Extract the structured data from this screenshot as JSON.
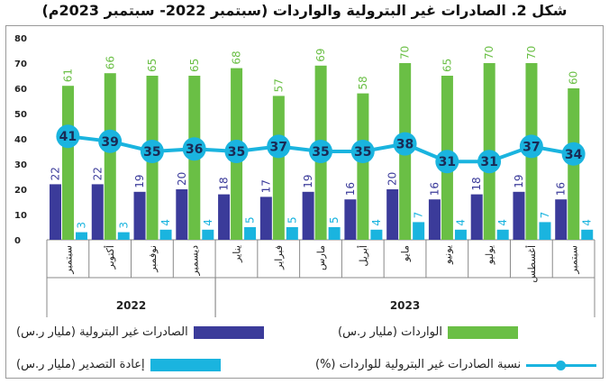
{
  "chart_data": {
    "title": "شكل 2. الصادرات غير البترولية والواردات (سبتمبر 2022- سبتمبر 2023م)",
    "type": "bar",
    "categories": [
      "سبتمبر",
      "أكتوبر",
      "نوفمبر",
      "ديسمبر",
      "يناير",
      "فبراير",
      "مارس",
      "أبريل",
      "مايو",
      "يونيو",
      "يوليو",
      "أغسطس",
      "سبتمبر"
    ],
    "year_groups": [
      {
        "label": "2022",
        "count": 4
      },
      {
        "label": "2023",
        "count": 9
      }
    ],
    "ylim": [
      0,
      80
    ],
    "yticks": [
      0,
      10,
      20,
      30,
      40,
      50,
      60,
      70,
      80
    ],
    "grid": false,
    "series": [
      {
        "name": "الصادرات غير البترولية (مليار ر.س)",
        "type": "bar",
        "color": "#3b3b9a",
        "values": [
          22,
          22,
          19,
          20,
          18,
          17,
          19,
          16,
          20,
          16,
          18,
          19,
          16
        ]
      },
      {
        "name": "الواردات (مليار ر.س)",
        "type": "bar",
        "color": "#6abf45",
        "values": [
          61,
          66,
          65,
          65,
          68,
          57,
          69,
          58,
          70,
          65,
          70,
          70,
          60
        ]
      },
      {
        "name": "إعادة التصدير (مليار ر.س)",
        "type": "bar",
        "color": "#1ab4df",
        "values": [
          3,
          3,
          4,
          4,
          5,
          5,
          5,
          4,
          7,
          4,
          4,
          7,
          4
        ]
      },
      {
        "name": "نسبة الصادرات غير البترولية للواردات (%)",
        "type": "line",
        "color": "#1ab4df",
        "values": [
          41,
          39,
          35,
          36,
          35,
          37,
          35,
          35,
          38,
          31,
          31,
          37,
          34
        ]
      }
    ],
    "legend_placement": "bottom"
  }
}
